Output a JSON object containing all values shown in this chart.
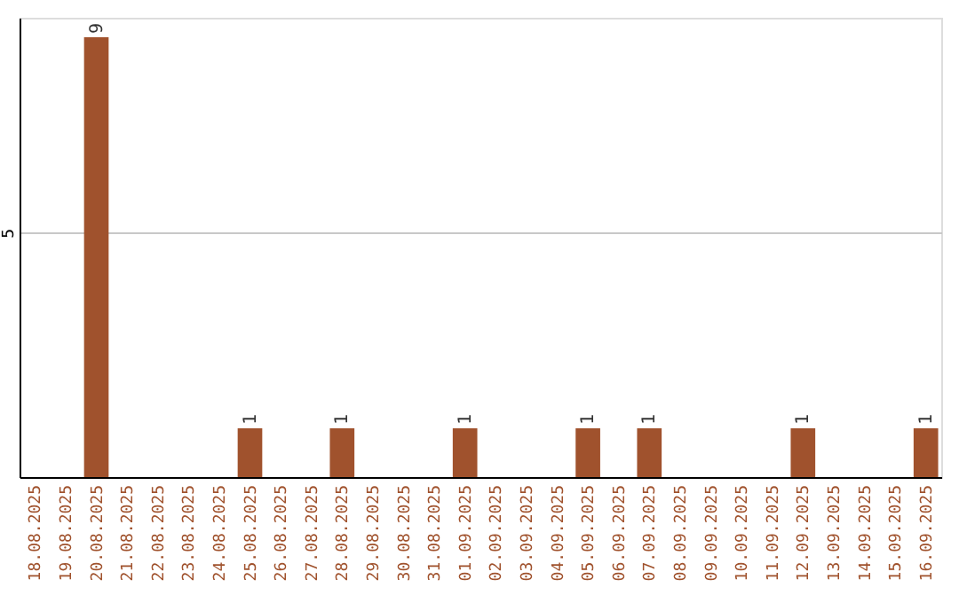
{
  "chart_data": {
    "type": "bar",
    "categories": [
      "18.08.2025",
      "19.08.2025",
      "20.08.2025",
      "21.08.2025",
      "22.08.2025",
      "23.08.2025",
      "24.08.2025",
      "25.08.2025",
      "26.08.2025",
      "27.08.2025",
      "28.08.2025",
      "29.08.2025",
      "30.08.2025",
      "31.08.2025",
      "01.09.2025",
      "02.09.2025",
      "03.09.2025",
      "04.09.2025",
      "05.09.2025",
      "06.09.2025",
      "07.09.2025",
      "08.09.2025",
      "09.09.2025",
      "10.09.2025",
      "11.09.2025",
      "12.09.2025",
      "13.09.2025",
      "14.09.2025",
      "15.09.2025",
      "16.09.2025"
    ],
    "values": [
      0,
      0,
      9,
      0,
      0,
      0,
      0,
      1,
      0,
      0,
      1,
      0,
      0,
      0,
      1,
      0,
      0,
      0,
      1,
      0,
      1,
      0,
      0,
      0,
      0,
      1,
      0,
      0,
      0,
      1
    ],
    "value_labels": [
      null,
      null,
      "9",
      null,
      null,
      null,
      null,
      "1",
      null,
      null,
      "1",
      null,
      null,
      null,
      "1",
      null,
      null,
      null,
      "1",
      null,
      "1",
      null,
      null,
      null,
      null,
      "1",
      null,
      null,
      null,
      "1"
    ],
    "color": "#a0522d",
    "ylim": [
      0,
      9.4
    ],
    "yticks": [
      5
    ],
    "grid": "y"
  }
}
